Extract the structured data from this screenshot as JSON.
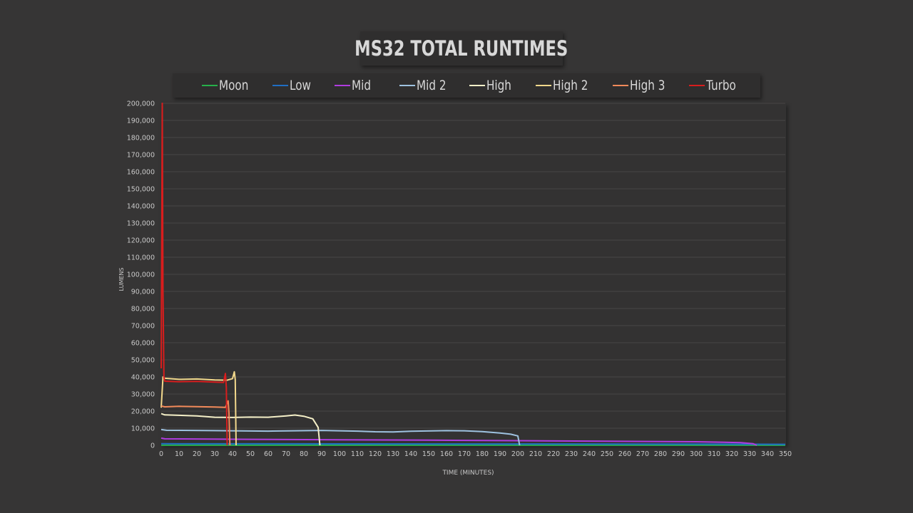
{
  "chart_data": {
    "type": "line",
    "title": "MS32 TOTAL RUNTIMES",
    "xlabel": "TIME (MINUTES)",
    "ylabel": "LUMENS",
    "xlim": [
      0,
      350
    ],
    "ylim": [
      0,
      200000
    ],
    "x_ticks": [
      "0",
      "10",
      "20",
      "30",
      "40",
      "50",
      "60",
      "70",
      "80",
      "90",
      "100",
      "110",
      "120",
      "130",
      "140",
      "150",
      "160",
      "170",
      "180",
      "190",
      "200",
      "210",
      "220",
      "230",
      "240",
      "250",
      "260",
      "270",
      "280",
      "290",
      "300",
      "310",
      "320",
      "330",
      "340",
      "350"
    ],
    "y_ticks": [
      "0",
      "10,000",
      "20,000",
      "30,000",
      "40,000",
      "50,000",
      "60,000",
      "70,000",
      "80,000",
      "90,000",
      "100,000",
      "110,000",
      "120,000",
      "130,000",
      "140,000",
      "150,000",
      "160,000",
      "170,000",
      "180,000",
      "190,000",
      "200,000"
    ],
    "grid": true,
    "legend_position": "top",
    "series": [
      {
        "name": "Moon",
        "color": "#27b04a",
        "points": [
          [
            0,
            30
          ],
          [
            350,
            30
          ]
        ]
      },
      {
        "name": "Low",
        "color": "#1f6fc4",
        "points": [
          [
            0,
            900
          ],
          [
            100,
            850
          ],
          [
            200,
            800
          ],
          [
            300,
            700
          ],
          [
            350,
            600
          ]
        ]
      },
      {
        "name": "Mid",
        "color": "#b03ce0",
        "points": [
          [
            0,
            4200
          ],
          [
            2,
            3800
          ],
          [
            50,
            3500
          ],
          [
            100,
            3200
          ],
          [
            150,
            3000
          ],
          [
            200,
            2700
          ],
          [
            250,
            2400
          ],
          [
            300,
            2100
          ],
          [
            325,
            1600
          ],
          [
            332,
            900
          ],
          [
            334,
            0
          ]
        ]
      },
      {
        "name": "Mid 2",
        "color": "#9ec2e0",
        "points": [
          [
            0,
            9200
          ],
          [
            3,
            8800
          ],
          [
            30,
            8600
          ],
          [
            60,
            8300
          ],
          [
            90,
            8700
          ],
          [
            110,
            8300
          ],
          [
            120,
            7900
          ],
          [
            130,
            7800
          ],
          [
            140,
            8200
          ],
          [
            160,
            8600
          ],
          [
            170,
            8500
          ],
          [
            180,
            8000
          ],
          [
            190,
            7200
          ],
          [
            196,
            6500
          ],
          [
            200,
            5500
          ],
          [
            201,
            0
          ]
        ]
      },
      {
        "name": "High",
        "color": "#f5f0c8",
        "points": [
          [
            0,
            18500
          ],
          [
            2,
            17800
          ],
          [
            20,
            17200
          ],
          [
            30,
            16400
          ],
          [
            40,
            16300
          ],
          [
            50,
            16500
          ],
          [
            60,
            16400
          ],
          [
            70,
            17200
          ],
          [
            75,
            17700
          ],
          [
            80,
            17000
          ],
          [
            85,
            15500
          ],
          [
            88,
            10500
          ],
          [
            89,
            0
          ]
        ]
      },
      {
        "name": "High 2",
        "color": "#f2d88c",
        "points": [
          [
            0,
            22000
          ],
          [
            1,
            40000
          ],
          [
            2,
            39200
          ],
          [
            10,
            38600
          ],
          [
            20,
            38800
          ],
          [
            30,
            38200
          ],
          [
            37,
            38100
          ],
          [
            40,
            39000
          ],
          [
            41,
            43000
          ],
          [
            41.5,
            38500
          ],
          [
            42,
            0
          ]
        ]
      },
      {
        "name": "High 3",
        "color": "#f28a5a",
        "points": [
          [
            0,
            23000
          ],
          [
            2,
            22500
          ],
          [
            10,
            22800
          ],
          [
            20,
            22600
          ],
          [
            30,
            22400
          ],
          [
            36,
            22200
          ],
          [
            37.5,
            26000
          ],
          [
            38,
            19000
          ],
          [
            38.5,
            0
          ]
        ]
      },
      {
        "name": "Turbo",
        "color": "#d81d1d",
        "points": [
          [
            0,
            45000
          ],
          [
            0.6,
            200000
          ],
          [
            1.0,
            90000
          ],
          [
            1.5,
            40000
          ],
          [
            2,
            37500
          ],
          [
            10,
            37200
          ],
          [
            20,
            37400
          ],
          [
            30,
            37000
          ],
          [
            35,
            36800
          ],
          [
            36,
            42000
          ],
          [
            36.5,
            34000
          ],
          [
            37,
            0
          ]
        ]
      }
    ]
  }
}
